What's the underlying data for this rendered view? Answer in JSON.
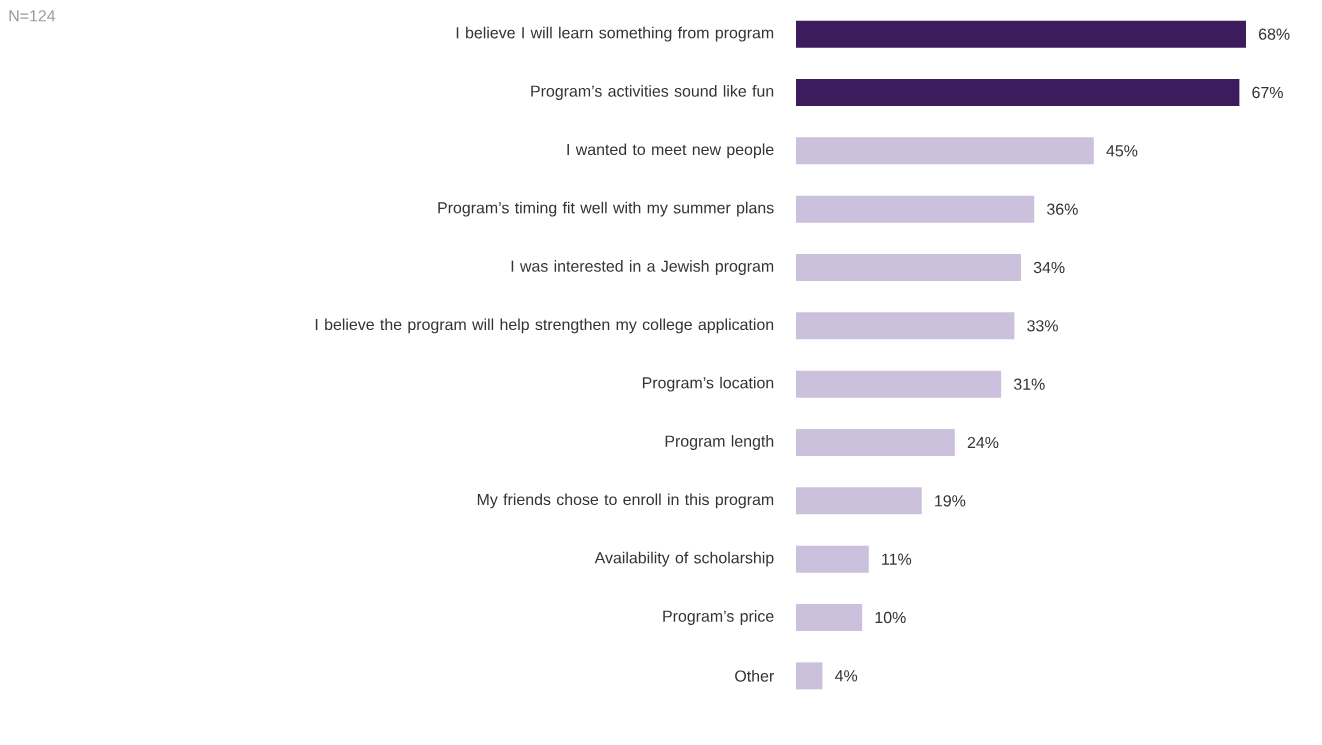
{
  "chart_data": {
    "type": "bar",
    "orientation": "horizontal",
    "tick_labels": "y",
    "categories": [
      "I believe I will learn something from program",
      "Program’s activities sound like fun",
      "I wanted to meet new people",
      "Program’s timing fit well with my summer plans",
      "I was interested in a Jewish program",
      "I believe the program will help strengthen my college application",
      "Program’s location",
      "Program length",
      "My friends chose to enroll in this program",
      "Availability of scholarship",
      "Program’s price",
      "Other"
    ],
    "values": [
      68,
      67,
      45,
      36,
      34,
      33,
      31,
      24,
      19,
      11,
      10,
      4
    ],
    "colors": [
      "#3d1c5e",
      "#3d1c5e",
      "#cbc1dd",
      "#cbc1dd",
      "#cbc1dd",
      "#cbc1dd",
      "#cbc1dd",
      "#cbc1dd",
      "#cbc1dd",
      "#cbc1dd",
      "#cbc1dd",
      "#cbc1dd"
    ],
    "value_labels": [
      "68%",
      "67%",
      "45%",
      "36%",
      "34%",
      "33%",
      "31%",
      "24%",
      "19%",
      "11%",
      "10%",
      "4%"
    ],
    "annotations": [
      "N=124"
    ]
  }
}
